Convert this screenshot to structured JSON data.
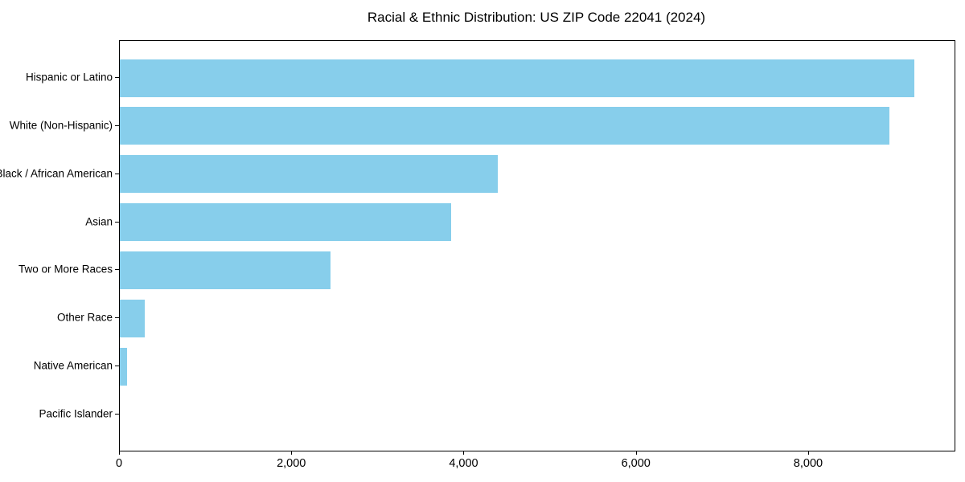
{
  "chart_data": {
    "type": "bar",
    "orientation": "horizontal",
    "title": "Racial & Ethnic Distribution: US ZIP Code 22041 (2024)",
    "categories": [
      "Hispanic or Latino",
      "White (Non-Hispanic)",
      "Black / African American",
      "Asian",
      "Two or More Races",
      "Other Race",
      "Native American",
      "Pacific Islander"
    ],
    "values": [
      9220,
      8930,
      4390,
      3850,
      2450,
      290,
      80,
      0
    ],
    "xlabel": "",
    "ylabel": "",
    "xlim": [
      0,
      9690
    ],
    "xticks": [
      0,
      2000,
      4000,
      6000,
      8000
    ],
    "xtick_labels": [
      "0",
      "2,000",
      "4,000",
      "6,000",
      "8,000"
    ],
    "bar_color": "#87CEEB",
    "spine_color": "#000000",
    "grid": false,
    "legend": null
  }
}
